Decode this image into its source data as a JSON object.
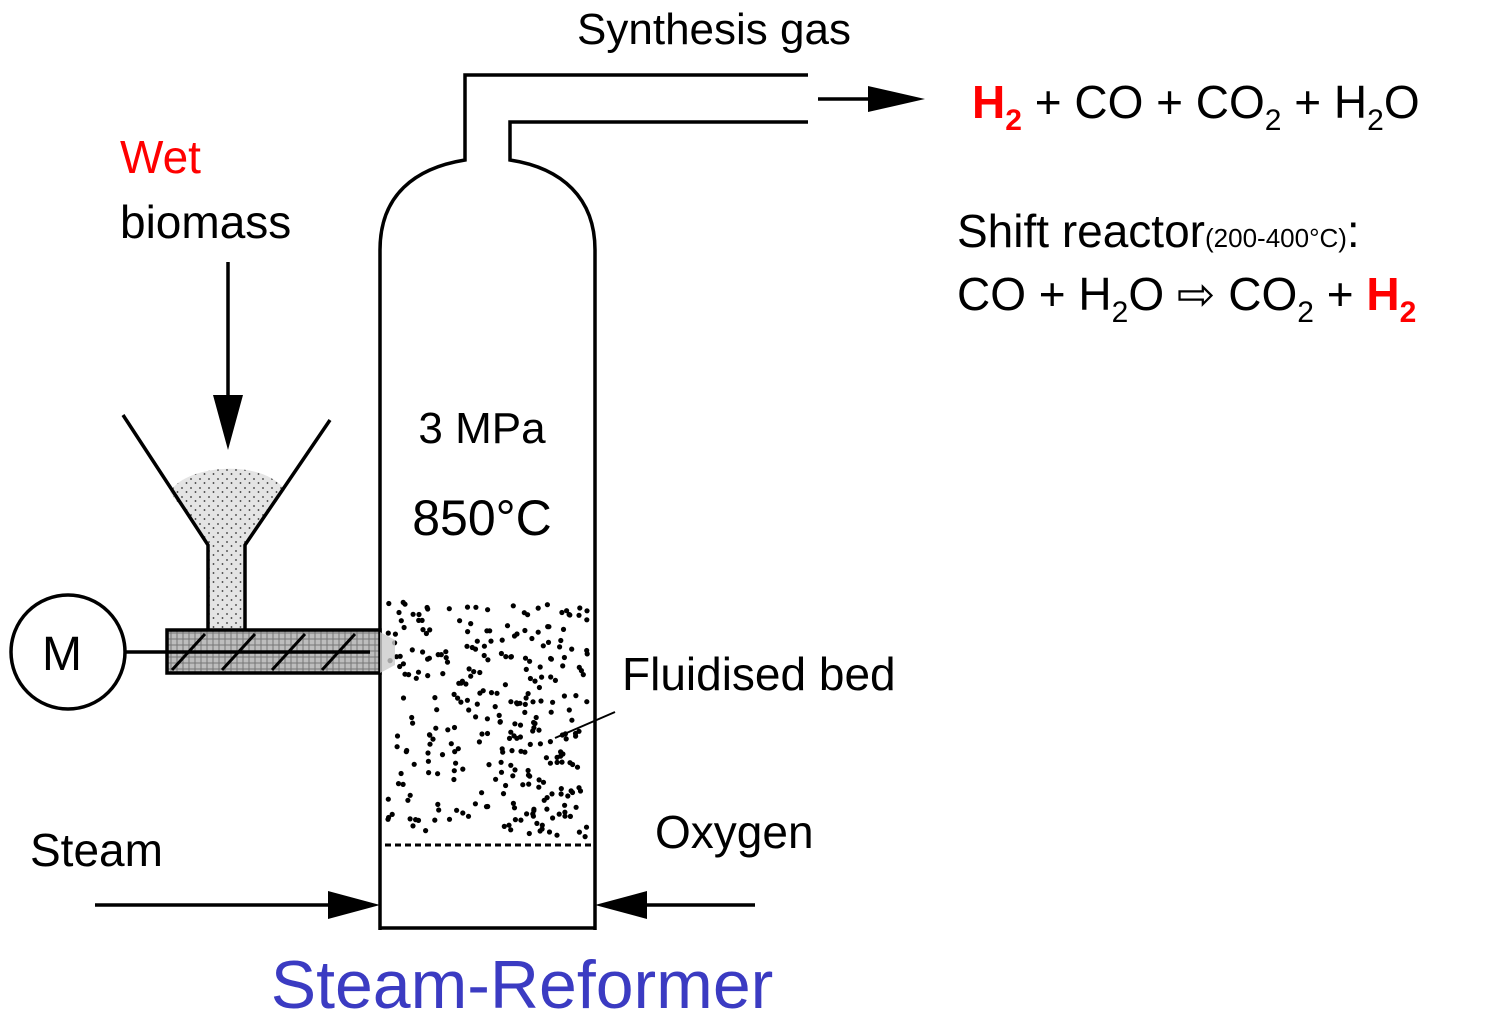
{
  "labels": {
    "synthesis_gas": "Synthesis gas",
    "wet": "Wet",
    "biomass": "biomass",
    "pressure": "3 MPa",
    "temperature": "850°C",
    "fluidised_bed": "Fluidised bed",
    "steam": "Steam",
    "oxygen": "Oxygen",
    "motor": "M",
    "title": "Steam-Reformer"
  },
  "product_equation": [
    "H",
    "2",
    " + CO + CO",
    "2",
    " + H",
    "2",
    "O"
  ],
  "shift_reactor": {
    "name": "Shift reactor",
    "condition": "(200-400°C)",
    "colon": ":",
    "equation": [
      "CO + H",
      "2",
      "O ⇨ CO",
      "2",
      " + ",
      "H",
      "2"
    ]
  }
}
